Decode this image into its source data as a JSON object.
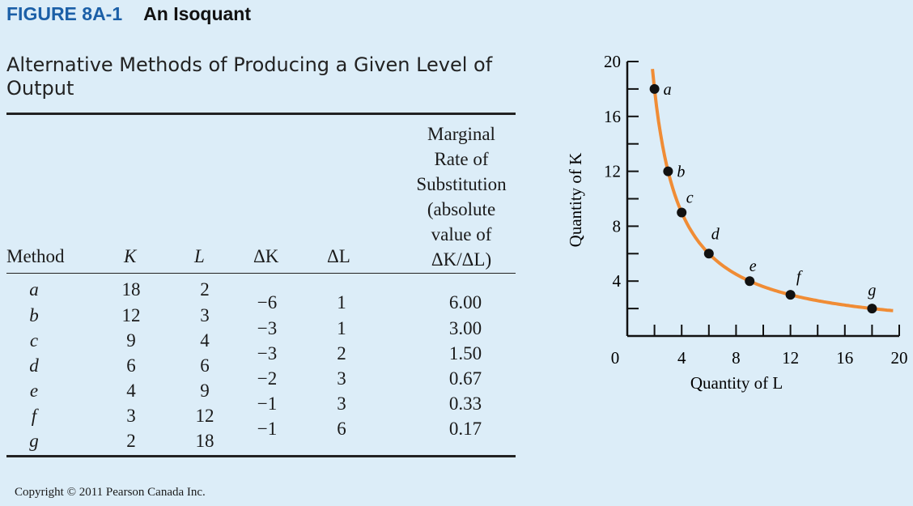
{
  "figure": {
    "label": "FIGURE 8A-1",
    "title": "An Isoquant"
  },
  "subtitle": "Alternative Methods of Producing a Given Level of Output",
  "table": {
    "headers": {
      "method": "Method",
      "k": "K",
      "l": "L",
      "dk": "ΔK",
      "dl": "ΔL"
    },
    "mrs_header": [
      "Marginal",
      "Rate of",
      "Substitution",
      "(absolute",
      "value of",
      "ΔK/ΔL)"
    ],
    "rows": [
      {
        "method": "a",
        "k": "18",
        "l": "2"
      },
      {
        "method": "b",
        "k": "12",
        "l": "3"
      },
      {
        "method": "c",
        "k": "9",
        "l": "4"
      },
      {
        "method": "d",
        "k": "6",
        "l": "6"
      },
      {
        "method": "e",
        "k": "4",
        "l": "9"
      },
      {
        "method": "f",
        "k": "3",
        "l": "12"
      },
      {
        "method": "g",
        "k": "2",
        "l": "18"
      }
    ],
    "changes": [
      {
        "dk": "−6",
        "dl": "1",
        "mrs": "6.00"
      },
      {
        "dk": "−3",
        "dl": "1",
        "mrs": "3.00"
      },
      {
        "dk": "−3",
        "dl": "2",
        "mrs": "1.50"
      },
      {
        "dk": "−2",
        "dl": "3",
        "mrs": "0.67"
      },
      {
        "dk": "−1",
        "dl": "3",
        "mrs": "0.33"
      },
      {
        "dk": "−1",
        "dl": "6",
        "mrs": "0.17"
      }
    ]
  },
  "chart_data": {
    "type": "line",
    "xlabel": "Quantity of  L",
    "ylabel": "Quantity of  K",
    "xlim": [
      0,
      20
    ],
    "ylim": [
      0,
      20
    ],
    "xticks": [
      "0",
      "4",
      "8",
      "12",
      "16",
      "20"
    ],
    "yticks": [
      "4",
      "8",
      "12",
      "16",
      "20"
    ],
    "curve_color": "#f08c35",
    "points": [
      {
        "name": "a",
        "x": 2,
        "y": 18
      },
      {
        "name": "b",
        "x": 3,
        "y": 12
      },
      {
        "name": "c",
        "x": 4,
        "y": 9
      },
      {
        "name": "d",
        "x": 6,
        "y": 6
      },
      {
        "name": "e",
        "x": 9,
        "y": 4
      },
      {
        "name": "f",
        "x": 12,
        "y": 3
      },
      {
        "name": "g",
        "x": 18,
        "y": 2
      }
    ]
  },
  "copyright": "Copyright © 2011 Pearson Canada Inc."
}
